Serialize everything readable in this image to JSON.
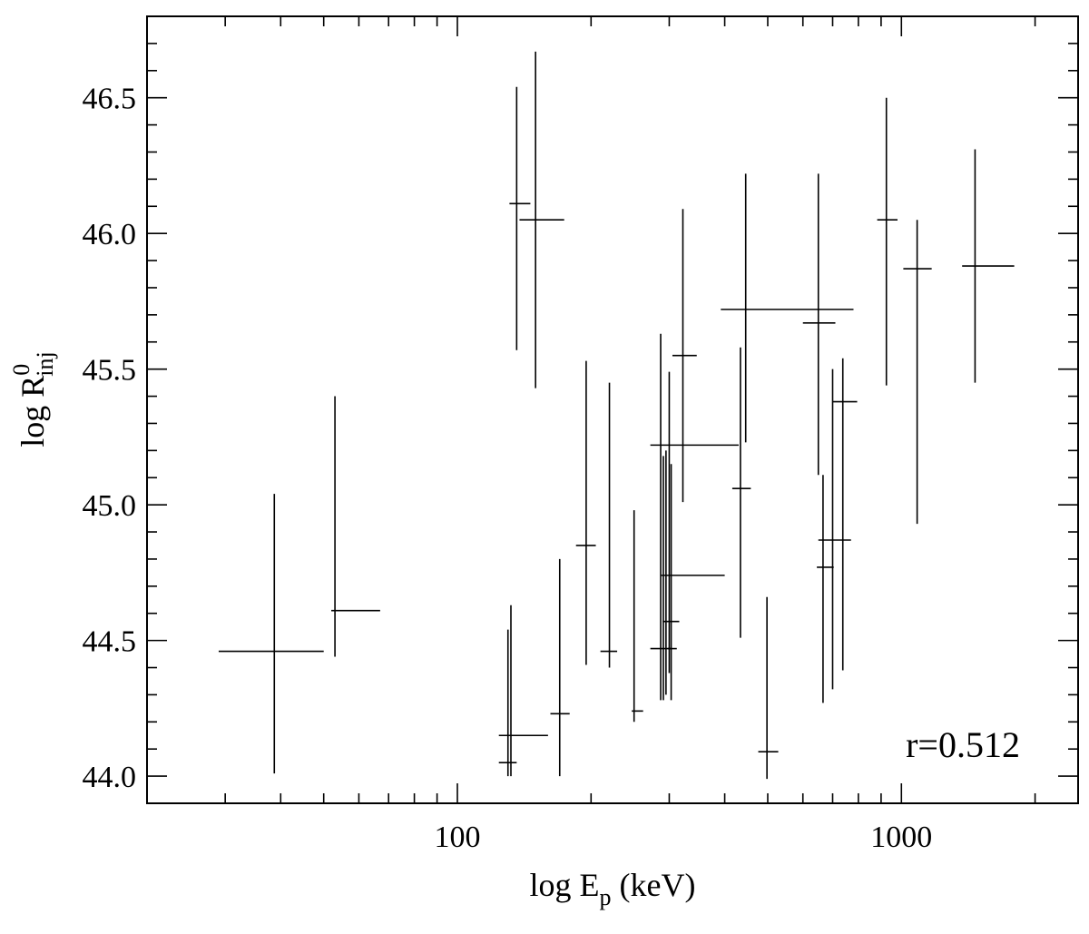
{
  "chart_data": {
    "type": "scatter",
    "title": "",
    "xlabel": {
      "main": "log E",
      "sub": "p",
      "tail": " (keV)"
    },
    "ylabel": {
      "main": "log R",
      "sup": "0",
      "sub": "inj"
    },
    "xscale": "log",
    "xlim": [
      20,
      2500
    ],
    "ylim": [
      43.9,
      46.8
    ],
    "x_major_ticks": [
      100,
      1000
    ],
    "x_tick_labels": [
      "100",
      "1000"
    ],
    "y_major_ticks": [
      44.0,
      44.5,
      45.0,
      45.5,
      46.0,
      46.5
    ],
    "y_tick_labels": [
      "44.0",
      "44.5",
      "45.0",
      "45.5",
      "46.0",
      "46.5"
    ],
    "grid": false,
    "annotation": "r=0.512",
    "series": [
      {
        "marker": "error-bar cross",
        "points": [
          {
            "x": 38.7,
            "xlo": 29,
            "xhi": 50,
            "y": 44.46,
            "ylo": 44.01,
            "yhi": 45.04
          },
          {
            "x": 53,
            "xlo": 52,
            "xhi": 67,
            "y": 44.61,
            "ylo": 44.44,
            "yhi": 45.4
          },
          {
            "x": 130,
            "xlo": 124,
            "xhi": 136,
            "y": 44.05,
            "ylo": 44.0,
            "yhi": 44.54
          },
          {
            "x": 132,
            "xlo": 124,
            "xhi": 160,
            "y": 44.15,
            "ylo": 44.0,
            "yhi": 44.63
          },
          {
            "x": 136,
            "xlo": 131,
            "xhi": 146,
            "y": 46.11,
            "ylo": 45.57,
            "yhi": 46.54
          },
          {
            "x": 150,
            "xlo": 138,
            "xhi": 174,
            "y": 46.05,
            "ylo": 45.43,
            "yhi": 46.67
          },
          {
            "x": 170,
            "xlo": 162,
            "xhi": 179,
            "y": 44.23,
            "ylo": 44.0,
            "yhi": 44.8
          },
          {
            "x": 195,
            "xlo": 185,
            "xhi": 205,
            "y": 44.85,
            "ylo": 44.41,
            "yhi": 45.53
          },
          {
            "x": 220,
            "xlo": 210,
            "xhi": 229,
            "y": 44.46,
            "ylo": 44.4,
            "yhi": 45.45
          },
          {
            "x": 250,
            "xlo": 247,
            "xhi": 262,
            "y": 44.24,
            "ylo": 44.2,
            "yhi": 44.98
          },
          {
            "x": 287,
            "xlo": 272,
            "xhi": 304,
            "y": 44.47,
            "ylo": 44.28,
            "yhi": 45.63
          },
          {
            "x": 291,
            "xlo": 272,
            "xhi": 430,
            "y": 45.22,
            "ylo": 44.28,
            "yhi": 45.18
          },
          {
            "x": 295,
            "xlo": 290,
            "xhi": 316,
            "y": 44.57,
            "ylo": 44.3,
            "yhi": 45.2
          },
          {
            "x": 300,
            "xlo": 287,
            "xhi": 400,
            "y": 44.74,
            "ylo": 44.38,
            "yhi": 45.49
          },
          {
            "x": 303,
            "xlo": 298,
            "xhi": 312,
            "y": 44.47,
            "ylo": 44.28,
            "yhi": 45.15
          },
          {
            "x": 322,
            "xlo": 305,
            "xhi": 346,
            "y": 45.55,
            "ylo": 45.01,
            "yhi": 46.09
          },
          {
            "x": 434,
            "xlo": 416,
            "xhi": 458,
            "y": 45.06,
            "ylo": 44.51,
            "yhi": 45.58
          },
          {
            "x": 446,
            "xlo": 392,
            "xhi": 780,
            "y": 45.72,
            "ylo": 45.23,
            "yhi": 46.22
          },
          {
            "x": 498,
            "xlo": 476,
            "xhi": 528,
            "y": 44.09,
            "ylo": 43.99,
            "yhi": 44.66
          },
          {
            "x": 650,
            "xlo": 600,
            "xhi": 710,
            "y": 45.67,
            "ylo": 45.11,
            "yhi": 46.22
          },
          {
            "x": 666,
            "xlo": 645,
            "xhi": 704,
            "y": 44.77,
            "ylo": 44.27,
            "yhi": 45.11
          },
          {
            "x": 700,
            "xlo": 650,
            "xhi": 770,
            "y": 44.87,
            "ylo": 44.32,
            "yhi": 45.5
          },
          {
            "x": 738,
            "xlo": 700,
            "xhi": 795,
            "y": 45.38,
            "ylo": 44.39,
            "yhi": 45.54
          },
          {
            "x": 925,
            "xlo": 882,
            "xhi": 980,
            "y": 46.05,
            "ylo": 45.44,
            "yhi": 46.5
          },
          {
            "x": 1085,
            "xlo": 1010,
            "xhi": 1170,
            "y": 45.87,
            "ylo": 44.93,
            "yhi": 46.05
          },
          {
            "x": 1465,
            "xlo": 1370,
            "xhi": 1795,
            "y": 45.88,
            "ylo": 45.45,
            "yhi": 46.31
          }
        ]
      }
    ]
  }
}
